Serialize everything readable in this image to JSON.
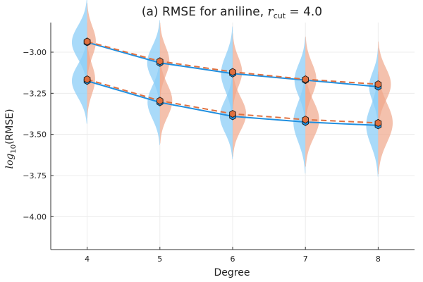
{
  "chart_data": {
    "type": "violin-line",
    "title": {
      "prefix": "(a) RMSE for aniline, ",
      "math_var": "r",
      "math_sub": "cut",
      "math_rest": " = 4.0"
    },
    "xlabel": "Degree",
    "ylabel": {
      "prefix": "log",
      "sub": "10",
      "suffix": "(RMSE)"
    },
    "x": [
      4,
      5,
      6,
      7,
      8
    ],
    "xticks": [
      "4",
      "5",
      "6",
      "7",
      "8"
    ],
    "xlim": [
      3.5,
      8.5
    ],
    "yticks": [
      "−3.00",
      "−3.25",
      "−3.50",
      "−3.75",
      "−4.00"
    ],
    "ytick_values": [
      -3.0,
      -3.25,
      -3.5,
      -3.75,
      -4.0
    ],
    "ylim": [
      -4.2,
      -2.82
    ],
    "grid": true,
    "colors": {
      "blue": "#1f8fe0",
      "blue_fill": "#8ccdf7",
      "orange": "#e0703f",
      "orange_fill": "#f0a78a",
      "grid": "#ececec",
      "axis": "#333333"
    },
    "series": [
      {
        "name": "upper-blue",
        "side": "left",
        "style": "solid",
        "values": [
          -2.94,
          -3.065,
          -3.13,
          -3.17,
          -3.21
        ],
        "spread": [
          0.1,
          0.1,
          0.11,
          0.1,
          0.09
        ],
        "width": [
          0.42,
          0.35,
          0.32,
          0.3,
          0.25
        ]
      },
      {
        "name": "upper-orange",
        "side": "right",
        "style": "dashed",
        "values": [
          -2.935,
          -3.055,
          -3.12,
          -3.165,
          -3.195
        ],
        "spread": [
          0.09,
          0.09,
          0.09,
          0.1,
          0.1
        ],
        "width": [
          0.24,
          0.26,
          0.26,
          0.3,
          0.35
        ]
      },
      {
        "name": "lower-blue",
        "side": "left",
        "style": "solid",
        "values": [
          -3.175,
          -3.305,
          -3.39,
          -3.425,
          -3.445
        ],
        "spread": [
          0.1,
          0.1,
          0.1,
          0.12,
          0.12
        ],
        "width": [
          0.42,
          0.34,
          0.35,
          0.33,
          0.33
        ]
      },
      {
        "name": "lower-orange",
        "side": "right",
        "style": "dashed",
        "values": [
          -3.165,
          -3.295,
          -3.375,
          -3.41,
          -3.43
        ],
        "spread": [
          0.09,
          0.1,
          0.1,
          0.11,
          0.12
        ],
        "width": [
          0.22,
          0.34,
          0.37,
          0.38,
          0.4
        ]
      }
    ]
  }
}
